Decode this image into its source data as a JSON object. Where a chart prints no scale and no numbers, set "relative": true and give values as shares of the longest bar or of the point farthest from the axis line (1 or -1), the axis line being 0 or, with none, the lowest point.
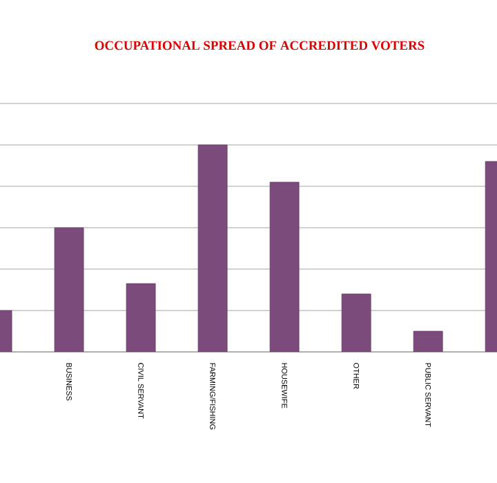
{
  "chart_data": {
    "type": "bar",
    "title": "OCCUPATIONAL SPREAD OF ACCREDITED VOTERS",
    "relative": true,
    "categories": [
      null,
      "BUSINESS",
      "CIVIL SERVANT",
      "FARMING/FISHING",
      "HOUSEWIFE",
      "OTHER",
      "PUBLIC SERVANT",
      null
    ],
    "values": [
      0.2,
      0.6,
      0.33,
      1,
      0.82,
      0.28,
      0.1,
      0.92
    ],
    "color": "#7b4b7b",
    "grid": "y"
  }
}
